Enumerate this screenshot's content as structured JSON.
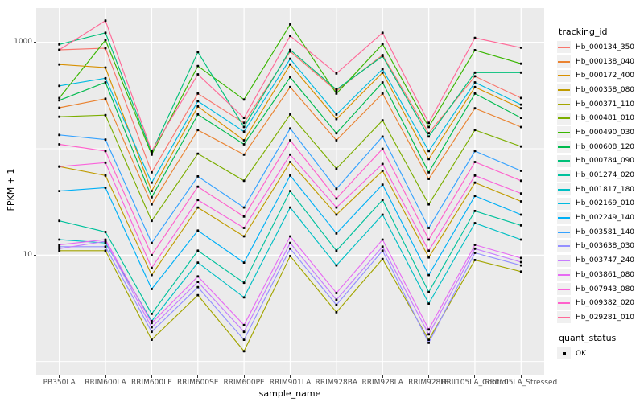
{
  "axes": {
    "y_title": "FPKM + 1",
    "x_title": "sample_name",
    "y_tick_labels": [
      "1000",
      "10"
    ],
    "y_tick_values": [
      1000,
      10
    ]
  },
  "legend": {
    "tracking_title": "tracking_id",
    "quant_title": "quant_status",
    "quant_ok_label": "OK"
  },
  "style": {
    "panel_bg": "#EBEBEB",
    "grid_color": "#FFFFFF",
    "point_color": "#000000",
    "axis_text_color": "#4D4D4D",
    "legend_key_bg": "#F0F0F0"
  },
  "chart_data": {
    "type": "line",
    "y_scale": "log10",
    "title": "",
    "xlabel": "sample_name",
    "ylabel": "FPKM + 1",
    "ylim": [
      0.75,
      2100
    ],
    "y_major_gridlines": [
      10,
      1000
    ],
    "y_minor_gridlines": [
      1,
      100
    ],
    "grid": true,
    "legend_position": "right",
    "point_marker": "black-square",
    "categories": [
      "PB350LA",
      "RRIM600LA",
      "RRIM600LE",
      "RRIM600SE",
      "RRIM600PE",
      "RRIM901LA",
      "RRIM928BA",
      "RRIM928LA",
      "RRIM928LE",
      "RRII105LA_Control",
      "RRII105LA_Stressed"
    ],
    "series": [
      {
        "name": "Hb_000134_350",
        "color": "#F8766D",
        "values": [
          850,
          880,
          60,
          330,
          175,
          820,
          350,
          760,
          140,
          480,
          300
        ]
      },
      {
        "name": "Hb_000138_040",
        "color": "#EA8331",
        "values": [
          243,
          295,
          30,
          150,
          88,
          380,
          120,
          330,
          52,
          240,
          160
        ]
      },
      {
        "name": "Hb_000172_400",
        "color": "#D89000",
        "values": [
          620,
          580,
          40,
          250,
          120,
          620,
          190,
          520,
          80,
          380,
          240
        ]
      },
      {
        "name": "Hb_000358_080",
        "color": "#C09B00",
        "values": [
          68,
          56,
          6.5,
          28,
          15,
          75,
          24,
          62,
          9.5,
          48,
          32
        ]
      },
      {
        "name": "Hb_000371_110",
        "color": "#A3A500",
        "values": [
          11,
          11,
          1.6,
          4.2,
          1.25,
          9.8,
          2.9,
          9.2,
          1.6,
          9,
          7
        ]
      },
      {
        "name": "Hb_000481_010",
        "color": "#7CAE00",
        "values": [
          200,
          207,
          21,
          90,
          50,
          210,
          65,
          185,
          30,
          150,
          105
        ]
      },
      {
        "name": "Hb_000490_030",
        "color": "#39B600",
        "values": [
          300,
          1050,
          88,
          600,
          290,
          1475,
          330,
          960,
          160,
          845,
          630
        ]
      },
      {
        "name": "Hb_000608_120",
        "color": "#00BB4E",
        "values": [
          285,
          420,
          35,
          210,
          110,
          470,
          140,
          420,
          60,
          330,
          195
        ]
      },
      {
        "name": "Hb_000784_090",
        "color": "#00C079",
        "values": [
          955,
          1230,
          92,
          810,
          160,
          850,
          360,
          740,
          130,
          520,
          520
        ]
      },
      {
        "name": "Hb_001274_020",
        "color": "#00C19C",
        "values": [
          21,
          16.5,
          2.8,
          11,
          5.5,
          40,
          11,
          33,
          4.5,
          26,
          19
        ]
      },
      {
        "name": "Hb_001817_180",
        "color": "#00BFC4",
        "values": [
          14,
          13,
          2.4,
          8.5,
          4,
          28,
          8,
          24,
          3.5,
          20,
          14
        ]
      },
      {
        "name": "Hb_002169_010",
        "color": "#00BAE0",
        "values": [
          390,
          460,
          48,
          280,
          145,
          700,
          210,
          560,
          95,
          420,
          260
        ]
      },
      {
        "name": "Hb_002249_140",
        "color": "#00B0F6",
        "values": [
          40,
          43,
          4.8,
          17,
          8.5,
          56,
          16,
          46,
          6.5,
          36,
          24
        ]
      },
      {
        "name": "Hb_003581_140",
        "color": "#35A2FF",
        "values": [
          135,
          122,
          13,
          55,
          28,
          155,
          42,
          130,
          18,
          95,
          62
        ]
      },
      {
        "name": "Hb_003638_030",
        "color": "#9590FF",
        "values": [
          12,
          12,
          1.9,
          5,
          1.6,
          11.5,
          3.4,
          11,
          1.5,
          10.5,
          8
        ]
      },
      {
        "name": "Hb_003747_240",
        "color": "#C77CFF",
        "values": [
          11.5,
          13.5,
          2.1,
          5.6,
          1.9,
          13,
          3.8,
          12,
          1.8,
          11.5,
          8.6
        ]
      },
      {
        "name": "Hb_003861_080",
        "color": "#E76BF3",
        "values": [
          12.5,
          14,
          2.3,
          6.3,
          2.2,
          15,
          4.4,
          14,
          2,
          12.5,
          9.4
        ]
      },
      {
        "name": "Hb_007943_080",
        "color": "#FA62DB",
        "values": [
          68,
          74,
          7.6,
          33,
          18,
          88,
          28,
          72,
          11,
          56,
          38
        ]
      },
      {
        "name": "Hb_009382_020",
        "color": "#FF61CC",
        "values": [
          110,
          95,
          10,
          44,
          23,
          120,
          34,
          100,
          14,
          75,
          50
        ]
      },
      {
        "name": "Hb_029281_010",
        "color": "#FF6A98",
        "values": [
          850,
          1600,
          95,
          500,
          195,
          1150,
          510,
          1230,
          175,
          1100,
          890
        ]
      }
    ]
  }
}
